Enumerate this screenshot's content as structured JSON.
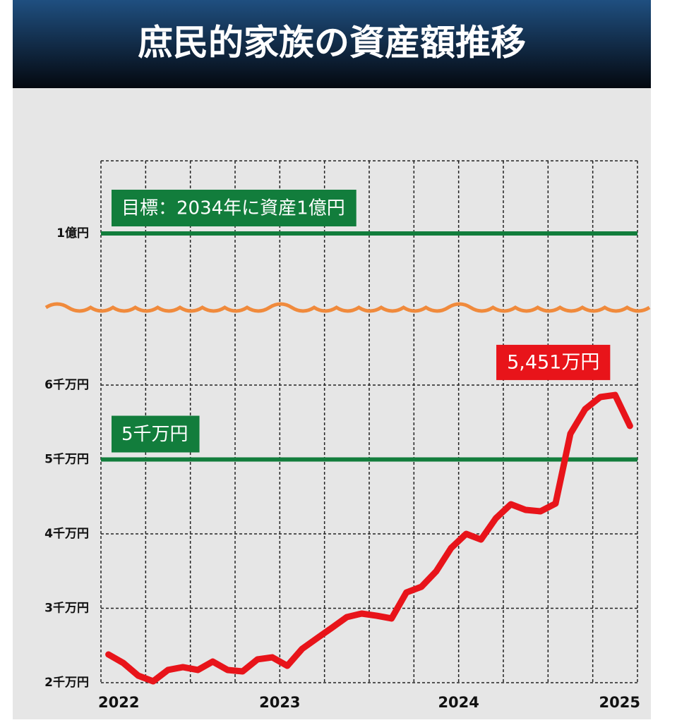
{
  "chart_data": {
    "type": "line",
    "title": "庶民的家族の資産額推移",
    "x": [
      2022.042,
      2022.125,
      2022.208,
      2022.292,
      2022.375,
      2022.458,
      2022.542,
      2022.625,
      2022.708,
      2022.792,
      2022.875,
      2022.958,
      2023.042,
      2023.125,
      2023.208,
      2023.292,
      2023.375,
      2023.458,
      2023.542,
      2023.625,
      2023.708,
      2023.792,
      2023.875,
      2023.958,
      2024.042,
      2024.125,
      2024.208,
      2024.292,
      2024.375,
      2024.458,
      2024.542,
      2024.625,
      2024.708,
      2024.792,
      2024.875,
      2024.958
    ],
    "series": [
      {
        "name": "資産額",
        "color": "#e8141a",
        "values": [
          2379,
          2265,
          2095,
          2019,
          2171,
          2209,
          2171,
          2284,
          2171,
          2152,
          2313,
          2341,
          2227,
          2455,
          2597,
          2739,
          2882,
          2929,
          2900,
          2863,
          3213,
          3289,
          3498,
          3810,
          4000,
          3924,
          4209,
          4398,
          4322,
          4303,
          4408,
          5346,
          5678,
          5839,
          5867,
          5451
        ],
        "value_labels": [
          null,
          null,
          null,
          null,
          null,
          null,
          null,
          null,
          null,
          null,
          null,
          null,
          null,
          null,
          null,
          null,
          null,
          null,
          null,
          null,
          null,
          null,
          null,
          null,
          null,
          null,
          null,
          null,
          null,
          null,
          null,
          null,
          null,
          null,
          null,
          "5,451万円"
        ]
      }
    ],
    "xlim": [
      2022,
      2025
    ],
    "xticks": [
      2022,
      2023,
      2024,
      2025
    ],
    "xgrid": [
      2022,
      2022.25,
      2022.5,
      2022.75,
      2023,
      2023.25,
      2023.5,
      2023.75,
      2024,
      2024.25,
      2024.5,
      2024.75,
      2025
    ],
    "ylim": [
      2000,
      10000
    ],
    "yticks": [
      {
        "value": 2000,
        "label": "2千万円"
      },
      {
        "value": 3000,
        "label": "3千万円"
      },
      {
        "value": 4000,
        "label": "4千万円"
      },
      {
        "value": 5000,
        "label": "5千万円"
      },
      {
        "value": 6000,
        "label": "6千万円"
      },
      {
        "value": 10000,
        "label": "1億円"
      }
    ],
    "axis_break": true,
    "grid": true,
    "reference_lines": [
      {
        "value": 10000,
        "label": "目標：2034年に資産1億円",
        "color": "#127d3c"
      },
      {
        "value": 5000,
        "label": "5千万円",
        "color": "#127d3c"
      }
    ]
  }
}
